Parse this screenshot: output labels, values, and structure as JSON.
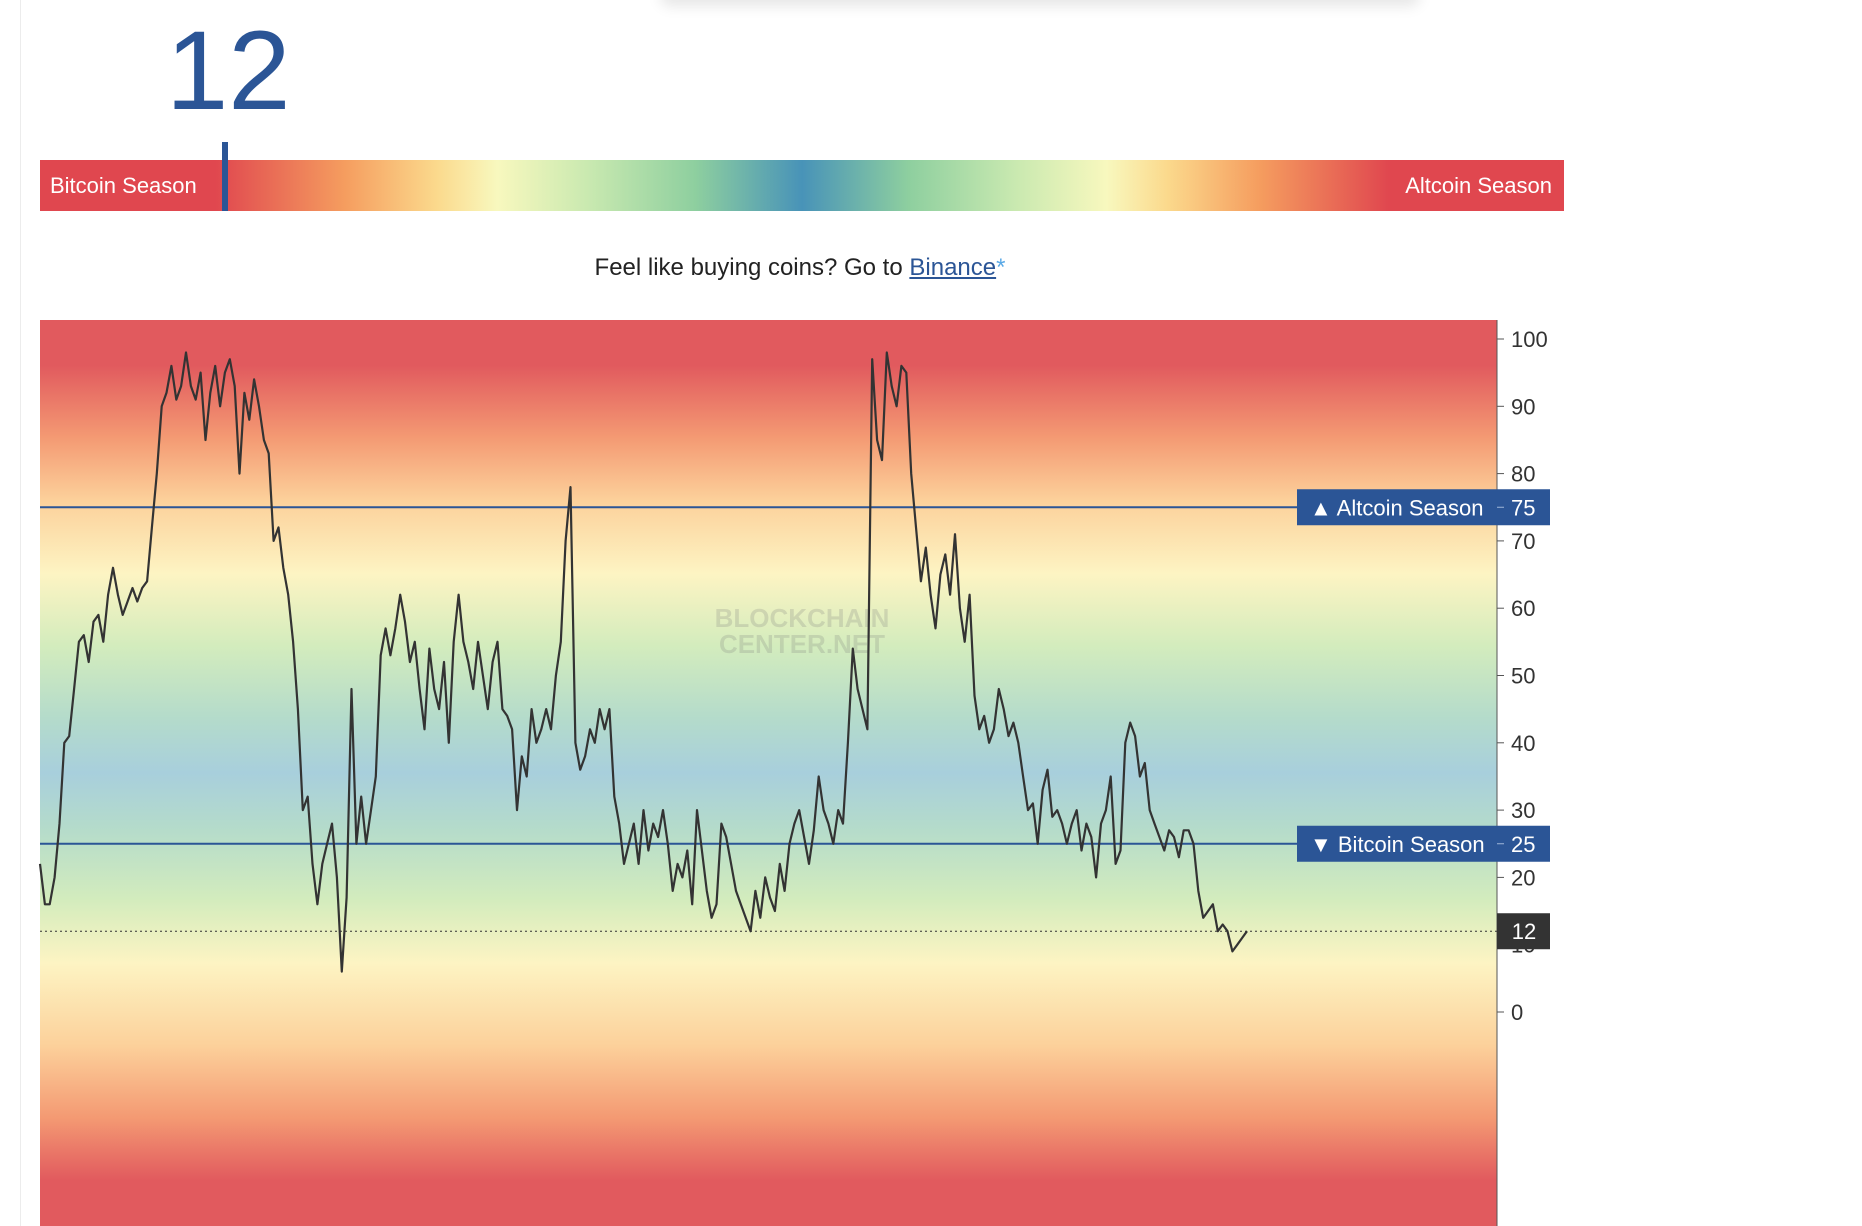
{
  "header": {
    "current_index": "12"
  },
  "season_bar": {
    "left_label": "Bitcoin Season",
    "right_label": "Altcoin Season",
    "marker_value": 12
  },
  "cta": {
    "text": "Feel like buying coins? Go to ",
    "link_label": "Binance",
    "asterisk": "*"
  },
  "watermark": {
    "line1": "BLOCKCHAIN",
    "line2": "CENTER.NET"
  },
  "colors": {
    "accent_blue": "#2b5596",
    "red": "#e0474f",
    "line": "#333333"
  },
  "chart_data": {
    "type": "line",
    "ylim": [
      0,
      100
    ],
    "y_ticks": [
      "0",
      "10",
      "20",
      "30",
      "40",
      "50",
      "60",
      "70",
      "80",
      "90",
      "100"
    ],
    "grid": false,
    "thresholds": [
      {
        "label": "▲ Altcoin Season",
        "value_label": "75",
        "value": 75
      },
      {
        "label": "▼ Bitcoin Season",
        "value_label": "25",
        "value": 25
      }
    ],
    "current": {
      "value": 12,
      "label": "12"
    },
    "series": [
      {
        "values": [
          22,
          16,
          16,
          20,
          28,
          40,
          41,
          48,
          55,
          56,
          52,
          58,
          59,
          55,
          62,
          66,
          62,
          59,
          61,
          63,
          61,
          63,
          64,
          72,
          80,
          90,
          92,
          96,
          91,
          93,
          98,
          93,
          91,
          95,
          85,
          92,
          96,
          90,
          95,
          97,
          93,
          80,
          92,
          88,
          94,
          90,
          85,
          83,
          70,
          72,
          66,
          62,
          55,
          45,
          30,
          32,
          22,
          16,
          22,
          25,
          28,
          20,
          6,
          17,
          48,
          25,
          32,
          25,
          30,
          35,
          53,
          57,
          53,
          57,
          62,
          58,
          52,
          55,
          48,
          42,
          54,
          48,
          45,
          52,
          40,
          55,
          62,
          55,
          52,
          48,
          55,
          50,
          45,
          52,
          55,
          45,
          44,
          42,
          30,
          38,
          35,
          45,
          40,
          42,
          45,
          42,
          50,
          55,
          70,
          78,
          40,
          36,
          38,
          42,
          40,
          45,
          42,
          45,
          32,
          28,
          22,
          25,
          28,
          22,
          30,
          24,
          28,
          26,
          30,
          25,
          18,
          22,
          20,
          24,
          16,
          30,
          24,
          18,
          14,
          16,
          28,
          26,
          22,
          18,
          16,
          14,
          12,
          18,
          14,
          20,
          17,
          15,
          22,
          18,
          25,
          28,
          30,
          26,
          22,
          27,
          35,
          30,
          28,
          25,
          30,
          28,
          40,
          54,
          48,
          45,
          42,
          97,
          85,
          82,
          98,
          93,
          90,
          96,
          95,
          80,
          72,
          64,
          69,
          62,
          57,
          65,
          68,
          62,
          71,
          60,
          55,
          62,
          47,
          42,
          44,
          40,
          42,
          48,
          45,
          41,
          43,
          40,
          35,
          30,
          31,
          25,
          33,
          36,
          29,
          30,
          28,
          25,
          28,
          30,
          24,
          28,
          26,
          20,
          28,
          30,
          35,
          22,
          24,
          40,
          43,
          41,
          35,
          37,
          30,
          28,
          26,
          24,
          27,
          26,
          23,
          27,
          27,
          25,
          18,
          14,
          15,
          16,
          12,
          13,
          12,
          9,
          10,
          11,
          12
        ]
      }
    ]
  }
}
